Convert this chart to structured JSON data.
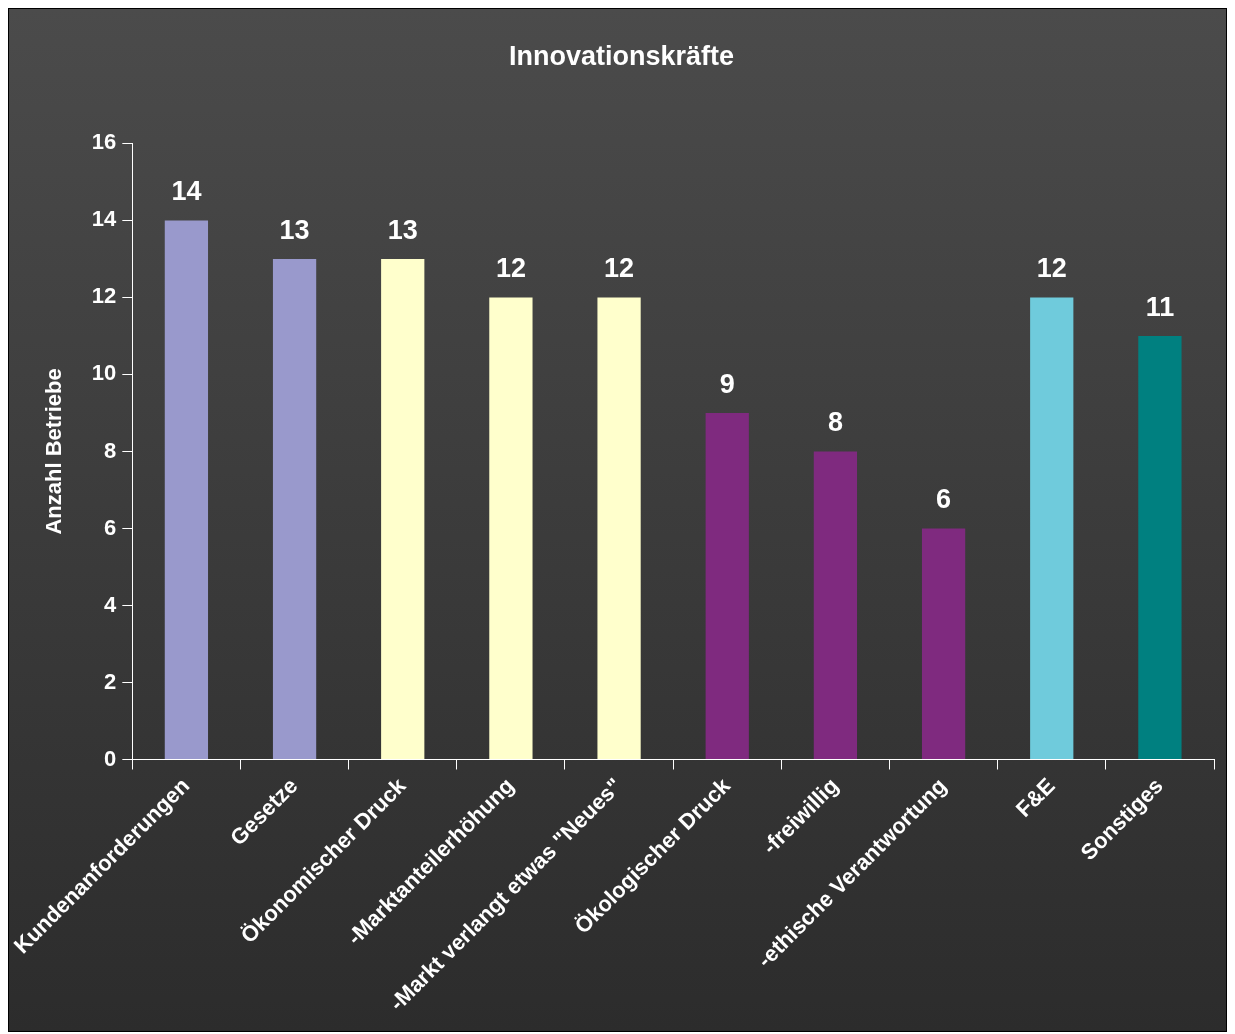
{
  "chart_data": {
    "type": "bar",
    "title": "Innovationskräfte",
    "ylabel": "Anzahl Betriebe",
    "categories": [
      "Kundenanforderungen",
      "Gesetze",
      "Ökonomischer Druck",
      "-Marktanteilerhöhung",
      "-Markt verlangt etwas \"Neues\"",
      "Ökologischer Druck",
      "-freiwillig",
      "-ethische Verantwortung",
      "F&E",
      "Sonstiges"
    ],
    "values": [
      14,
      13,
      13,
      12,
      12,
      9,
      8,
      6,
      12,
      11
    ],
    "colors": [
      "#9999cc",
      "#9999cc",
      "#ffffcc",
      "#ffffcc",
      "#ffffcc",
      "#7f2a7f",
      "#7f2a7f",
      "#7f2a7f",
      "#6fcbdc",
      "#008080"
    ],
    "ylim": [
      0,
      16
    ],
    "yticks": [
      0,
      2,
      4,
      6,
      8,
      10,
      12,
      14,
      16
    ],
    "grid": false,
    "legend": false,
    "data_labels": true
  }
}
